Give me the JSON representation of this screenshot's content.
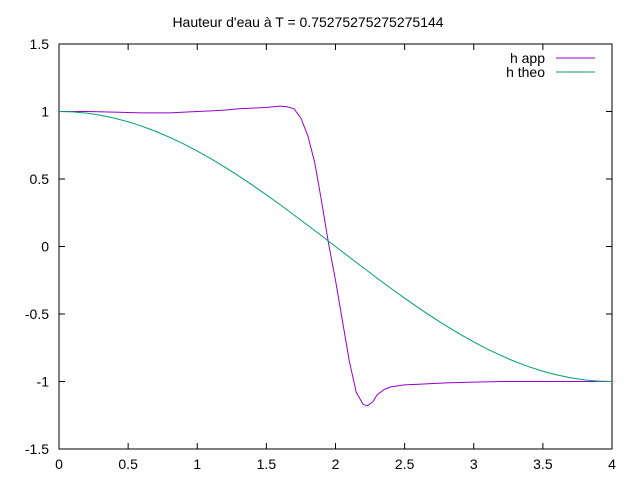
{
  "chart_data": {
    "type": "line",
    "title": "Hauteur d'eau à T =   0.75275275275275144",
    "xlabel": "",
    "ylabel": "",
    "xlim": [
      0,
      4
    ],
    "ylim": [
      -1.5,
      1.5
    ],
    "xticks": [
      0,
      0.5,
      1,
      1.5,
      2,
      2.5,
      3,
      3.5,
      4
    ],
    "yticks": [
      -1.5,
      -1,
      -0.5,
      0,
      0.5,
      1,
      1.5
    ],
    "xtick_labels": [
      "0",
      "0.5",
      "1",
      "1.5",
      "2",
      "2.5",
      "3",
      "3.5",
      "4"
    ],
    "ytick_labels": [
      "-1.5",
      "-1",
      "-0.5",
      "0",
      "0.5",
      "1",
      "1.5"
    ],
    "grid": false,
    "legend_position": "top-right",
    "series": [
      {
        "name": "h app",
        "color": "#9400d3",
        "x": [
          0,
          0.2,
          0.4,
          0.6,
          0.8,
          1.0,
          1.1,
          1.2,
          1.3,
          1.4,
          1.5,
          1.55,
          1.6,
          1.65,
          1.7,
          1.75,
          1.8,
          1.85,
          1.9,
          1.95,
          2.0,
          2.05,
          2.1,
          2.15,
          2.2,
          2.23,
          2.27,
          2.3,
          2.35,
          2.4,
          2.5,
          2.6,
          2.8,
          3.0,
          3.2,
          3.5,
          4.0
        ],
        "y": [
          1.0,
          1.0,
          0.995,
          0.99,
          0.99,
          1.0,
          1.005,
          1.01,
          1.02,
          1.025,
          1.03,
          1.035,
          1.04,
          1.035,
          1.02,
          0.95,
          0.82,
          0.62,
          0.33,
          0.02,
          -0.25,
          -0.55,
          -0.85,
          -1.08,
          -1.17,
          -1.18,
          -1.15,
          -1.1,
          -1.06,
          -1.04,
          -1.025,
          -1.02,
          -1.01,
          -1.005,
          -1.0,
          -1.0,
          -1.0
        ]
      },
      {
        "name": "h theo",
        "color": "#009e73",
        "x": [
          0,
          0.1,
          0.2,
          0.3,
          0.4,
          0.5,
          0.6,
          0.7,
          0.8,
          0.9,
          1.0,
          1.1,
          1.2,
          1.3,
          1.4,
          1.5,
          1.6,
          1.7,
          1.8,
          1.9,
          2.0,
          2.1,
          2.2,
          2.3,
          2.4,
          2.5,
          2.6,
          2.7,
          2.8,
          2.9,
          3.0,
          3.1,
          3.2,
          3.3,
          3.4,
          3.5,
          3.6,
          3.7,
          3.8,
          3.9,
          4.0
        ],
        "y": [
          1.0,
          0.99692,
          0.98769,
          0.97237,
          0.95106,
          0.92388,
          0.89101,
          0.85264,
          0.80902,
          0.76041,
          0.70711,
          0.64945,
          0.58779,
          0.5225,
          0.45399,
          0.38268,
          0.30902,
          0.23345,
          0.15643,
          0.07846,
          0.0,
          -0.07846,
          -0.15643,
          -0.23345,
          -0.30902,
          -0.38268,
          -0.45399,
          -0.5225,
          -0.58779,
          -0.64945,
          -0.70711,
          -0.76041,
          -0.80902,
          -0.85264,
          -0.89101,
          -0.92388,
          -0.95106,
          -0.97237,
          -0.98769,
          -0.99692,
          -1.0
        ]
      }
    ]
  }
}
